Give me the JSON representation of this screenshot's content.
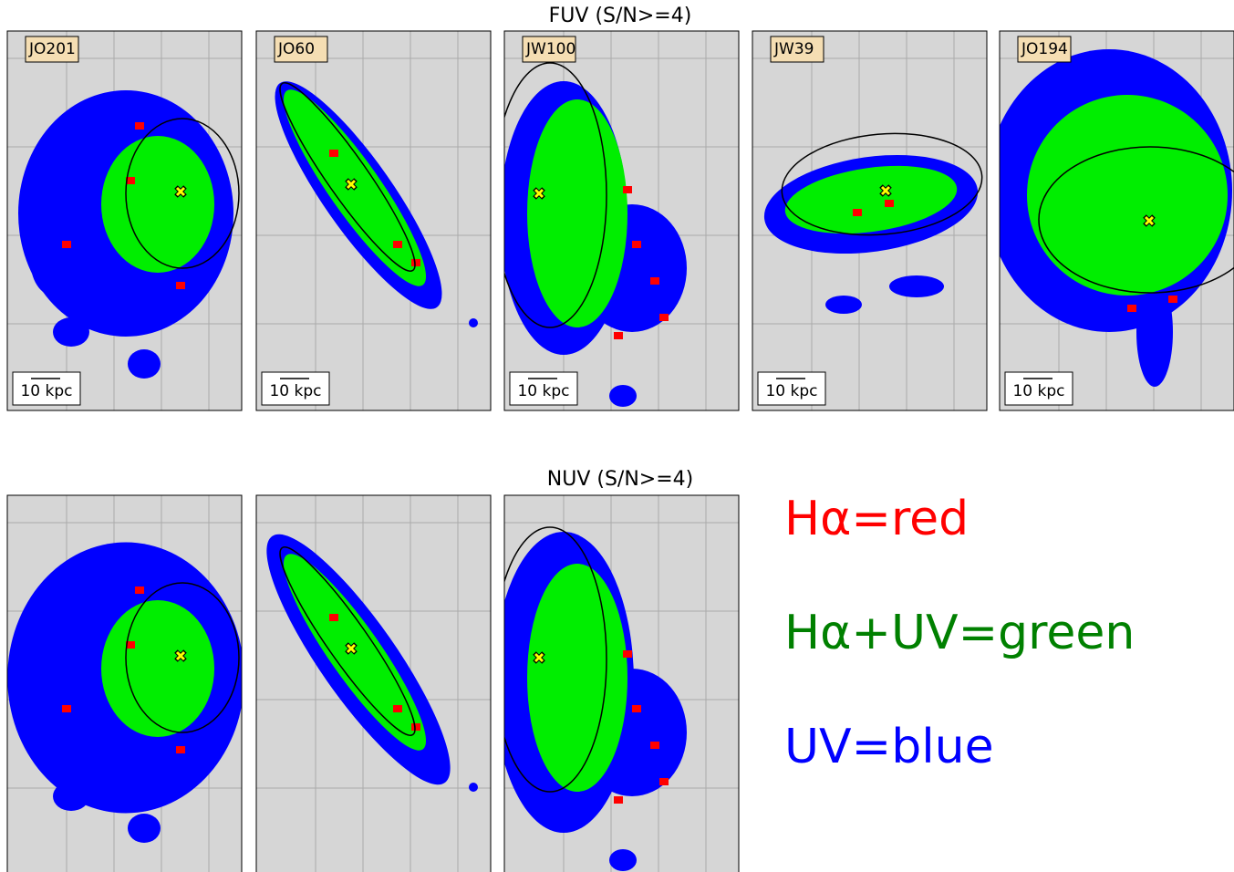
{
  "rows": [
    {
      "title": "FUV (S/N>=4)",
      "panels": [
        {
          "label": "JO201",
          "scale_bar": "10 kpc"
        },
        {
          "label": "JO60",
          "scale_bar": "10 kpc"
        },
        {
          "label": "JW100",
          "scale_bar": "10 kpc"
        },
        {
          "label": "JW39",
          "scale_bar": "10 kpc"
        },
        {
          "label": "JO194",
          "scale_bar": "10 kpc"
        }
      ]
    },
    {
      "title": "NUV (S/N>=4)"
    }
  ],
  "legend": [
    {
      "text": "Hα=red",
      "color": "#ff0000"
    },
    {
      "text": "Hα+UV=green",
      "color": "#008000"
    },
    {
      "text": "UV=blue",
      "color": "#0000ff"
    }
  ]
}
